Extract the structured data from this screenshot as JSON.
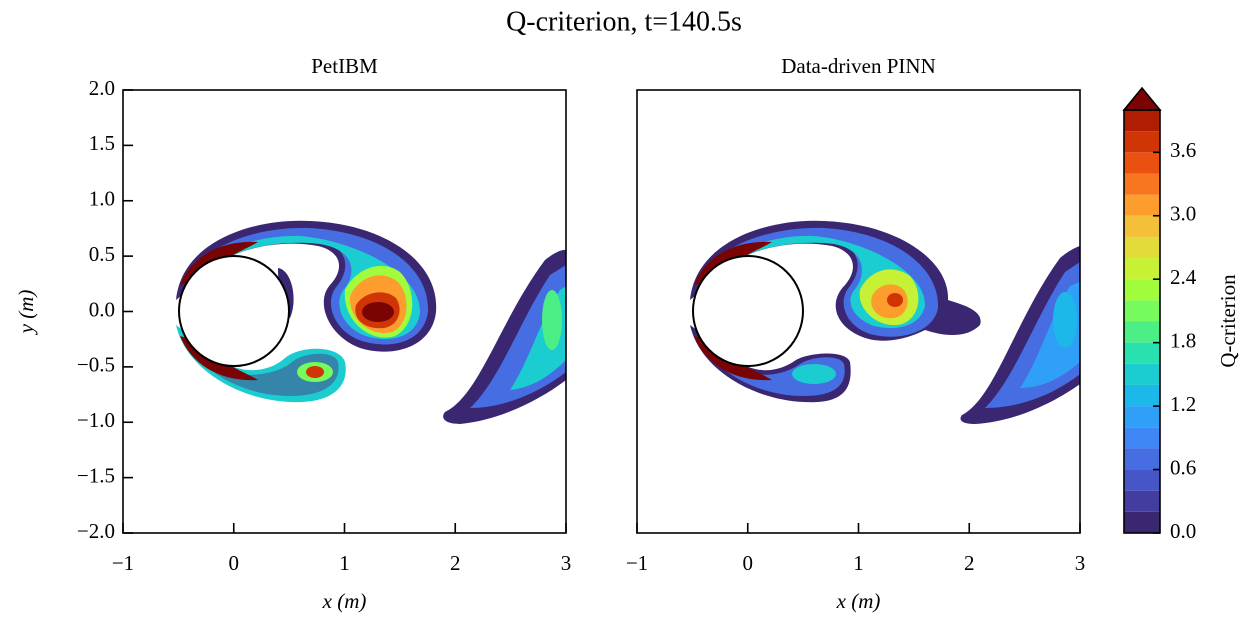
{
  "title": "Q-criterion, t=140.5s",
  "chart_data": [
    {
      "type": "contour",
      "title": "PetIBM",
      "xlabel": "x (m)",
      "ylabel": "y (m)",
      "xlim": [
        -1,
        3
      ],
      "ylim": [
        -2,
        2
      ],
      "xticks": [
        {
          "value": -1,
          "label": "−1"
        },
        0,
        1,
        2,
        3
      ],
      "yticks": [
        {
          "value": 2,
          "label": "2.0"
        },
        {
          "value": 1.5,
          "label": "1.5"
        },
        {
          "value": 1,
          "label": "1.0"
        },
        {
          "value": 0.5,
          "label": "0.5"
        },
        {
          "value": 0,
          "label": "0.0"
        },
        {
          "value": -0.5,
          "label": "−0.5"
        },
        {
          "value": -1,
          "label": "−1.0"
        },
        {
          "value": -1.5,
          "label": "−1.5"
        },
        {
          "value": -2,
          "label": "−2.0"
        }
      ]
    },
    {
      "type": "contour",
      "title": "Data-driven PINN",
      "xlabel": "x (m)",
      "xlim": [
        -1,
        3
      ],
      "ylim": [
        -2,
        2
      ],
      "xticks": [
        {
          "value": -1,
          "label": "−1"
        },
        0,
        1,
        2,
        3
      ]
    }
  ],
  "colorbar": {
    "label": "Q-criterion",
    "extend": "max",
    "extend_color": "#7a0403",
    "levels": [
      0,
      0.2,
      0.4,
      0.6,
      0.8,
      1.0,
      1.2,
      1.4,
      1.6,
      1.8,
      2.0,
      2.2,
      2.4,
      2.6,
      2.8,
      3.0,
      3.2,
      3.4,
      3.6,
      3.8,
      4.0
    ],
    "colors": [
      "#3b2671",
      "#433d9f",
      "#4655c7",
      "#466de2",
      "#3f86f6",
      "#2f9ff8",
      "#1cb8e9",
      "#1bcdd0",
      "#29e0af",
      "#4bef86",
      "#77fa5b",
      "#a1fc3c",
      "#c6f134",
      "#e2dc38",
      "#f4bf39",
      "#fd9d2e",
      "#f97620",
      "#ea5110",
      "#d03505",
      "#b01e01"
    ],
    "ticks": [
      {
        "value": 0,
        "label": "0.0"
      },
      {
        "value": 0.6,
        "label": "0.6"
      },
      {
        "value": 1.2,
        "label": "1.2"
      },
      {
        "value": 1.8,
        "label": "1.8"
      },
      {
        "value": 2.4,
        "label": "2.4"
      },
      {
        "value": 3.0,
        "label": "3.0"
      },
      {
        "value": 3.6,
        "label": "3.6"
      }
    ]
  }
}
